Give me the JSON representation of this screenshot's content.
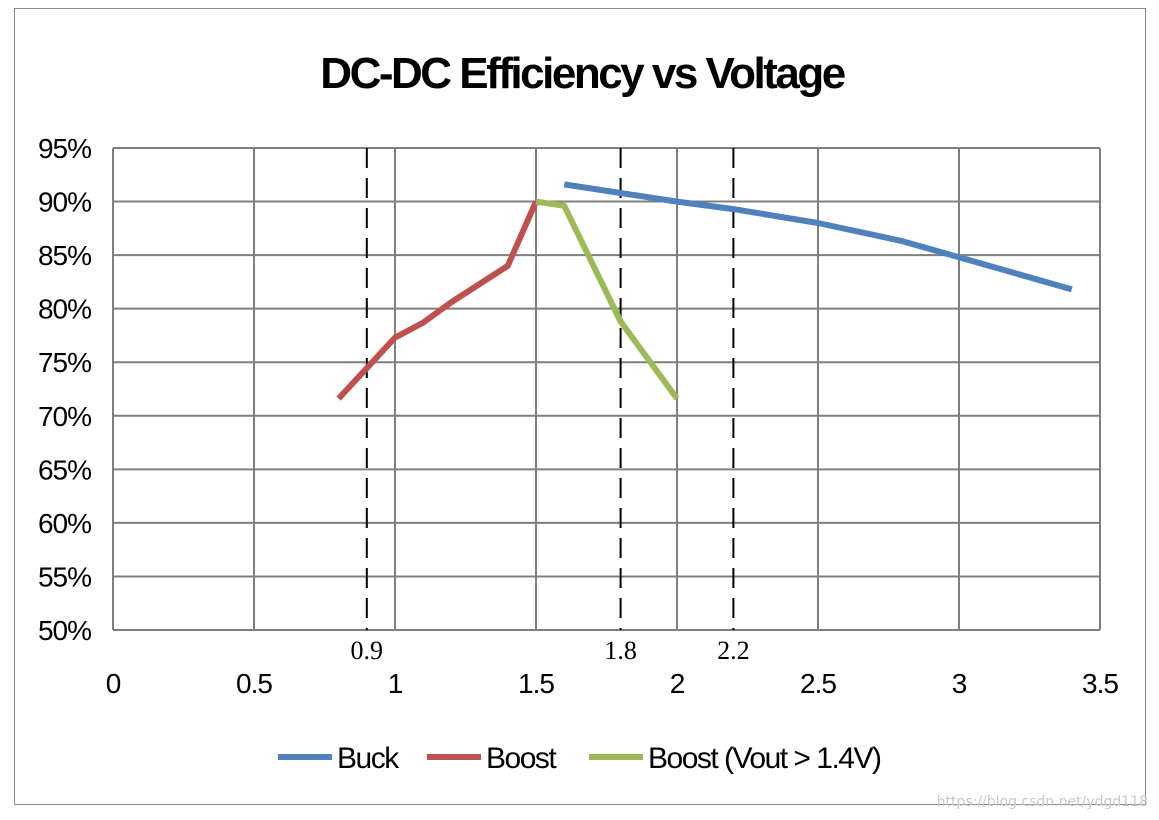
{
  "chart_data": {
    "type": "line",
    "title": "DC-DC Efficiency vs Voltage",
    "xlabel": "",
    "ylabel": "",
    "xlim": [
      0,
      3.5
    ],
    "ylim": [
      50,
      95
    ],
    "x_ticks": [
      "0",
      "0.5",
      "1",
      "1.5",
      "2",
      "2.5",
      "3",
      "3.5"
    ],
    "x_tick_values": [
      0,
      0.5,
      1,
      1.5,
      2,
      2.5,
      3,
      3.5
    ],
    "y_ticks": [
      "50%",
      "55%",
      "60%",
      "65%",
      "70%",
      "75%",
      "80%",
      "85%",
      "90%",
      "95%"
    ],
    "y_tick_values": [
      50,
      55,
      60,
      65,
      70,
      75,
      80,
      85,
      90,
      95
    ],
    "grid": true,
    "legend_position": "bottom",
    "reference_lines": [
      {
        "x": 0.9,
        "label": "0.9"
      },
      {
        "x": 1.8,
        "label": "1.8"
      },
      {
        "x": 2.2,
        "label": "2.2"
      }
    ],
    "series": [
      {
        "name": "Buck",
        "color": "#4f81bd",
        "points": [
          [
            1.6,
            91.6
          ],
          [
            1.8,
            90.8
          ],
          [
            2.0,
            90.0
          ],
          [
            2.2,
            89.3
          ],
          [
            2.5,
            88.0
          ],
          [
            2.8,
            86.3
          ],
          [
            3.0,
            84.8
          ],
          [
            3.2,
            83.3
          ],
          [
            3.4,
            81.8
          ]
        ]
      },
      {
        "name": "Boost",
        "color": "#c0504d",
        "points": [
          [
            0.8,
            71.6
          ],
          [
            1.0,
            77.3
          ],
          [
            1.1,
            78.7
          ],
          [
            1.2,
            80.6
          ],
          [
            1.4,
            84.0
          ],
          [
            1.5,
            90.0
          ]
        ]
      },
      {
        "name": "Boost (Vout > 1.4V)",
        "color": "#9bbb59",
        "points": [
          [
            1.5,
            90.0
          ],
          [
            1.6,
            89.6
          ],
          [
            1.8,
            78.8
          ],
          [
            2.0,
            71.6
          ]
        ]
      }
    ]
  },
  "watermark": "https://blog.csdn.net/ydgd118"
}
